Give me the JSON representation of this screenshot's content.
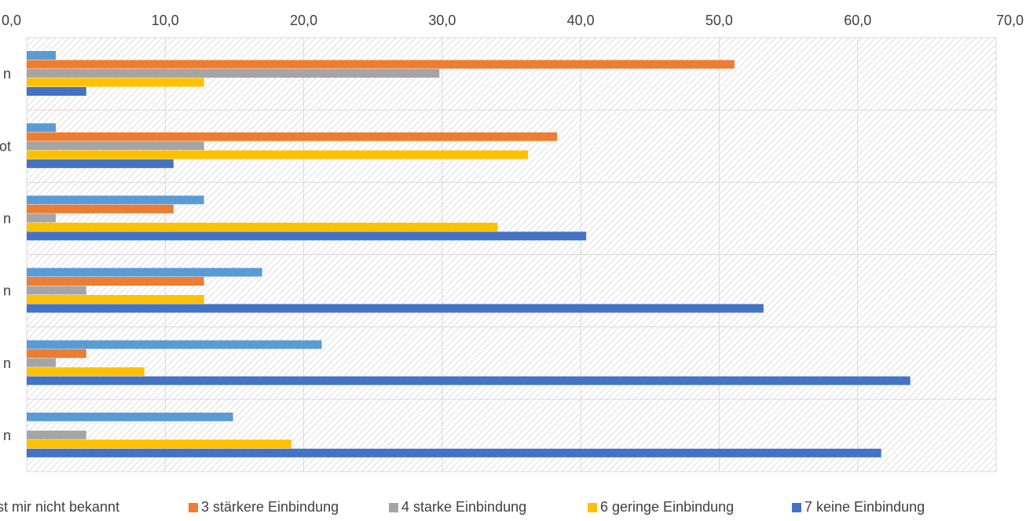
{
  "chart_data": {
    "type": "bar",
    "orientation": "horizontal",
    "xlim": [
      0,
      70
    ],
    "x_ticks": [
      "0,0",
      "10,0",
      "20,0",
      "30,0",
      "40,0",
      "50,0",
      "60,0",
      "70,0"
    ],
    "x_tick_values": [
      0,
      10,
      20,
      30,
      40,
      50,
      60,
      70
    ],
    "axis_position": "top",
    "grid": true,
    "legend_position": "bottom",
    "categories": [
      "n",
      "ot",
      "n",
      "n",
      "n",
      "n"
    ],
    "series": [
      {
        "name": "ist mir nicht bekannt",
        "color": "#5B9BD5",
        "values": [
          2.1,
          2.1,
          12.8,
          17.0,
          21.3,
          14.9
        ]
      },
      {
        "name": "3 stärkere Einbindung",
        "color": "#ED7D31",
        "values": [
          51.1,
          38.3,
          10.6,
          12.8,
          4.3,
          null
        ]
      },
      {
        "name": "4 starke Einbindung",
        "color": "#A5A5A5",
        "values": [
          29.8,
          12.8,
          2.1,
          4.3,
          2.1,
          4.3
        ]
      },
      {
        "name": "6 geringe Einbindung",
        "color": "#FFC000",
        "values": [
          12.8,
          36.2,
          34.0,
          12.8,
          8.5,
          19.1
        ]
      },
      {
        "name": "7 keine Einbindung",
        "color": "#4472C4",
        "values": [
          4.3,
          10.6,
          40.4,
          53.2,
          63.8,
          61.7
        ]
      }
    ]
  }
}
